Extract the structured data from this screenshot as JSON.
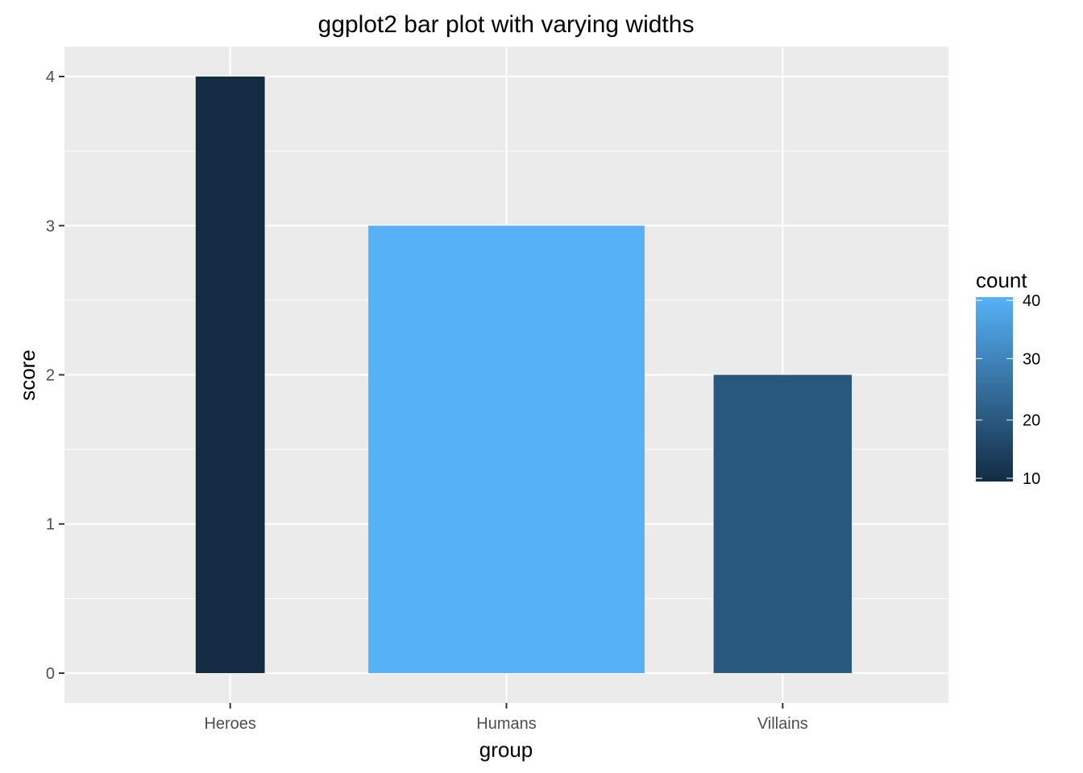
{
  "chart_data": {
    "type": "bar",
    "title": "ggplot2 bar plot with varying widths",
    "xlabel": "group",
    "ylabel": "score",
    "categories": [
      "Heroes",
      "Humans",
      "Villains"
    ],
    "values": [
      4,
      3,
      2
    ],
    "bar_widths": [
      0.25,
      1.0,
      0.5
    ],
    "ylim": [
      -0.2,
      4.2
    ],
    "yticks": [
      0,
      1,
      2,
      3,
      4
    ],
    "grid": true,
    "fill_scale": {
      "name": "count",
      "values": [
        10,
        40,
        20
      ],
      "limits": [
        10,
        40
      ],
      "breaks": [
        10,
        20,
        30,
        40
      ],
      "low_color": "#132B43",
      "high_color": "#56B1F7"
    },
    "legend_placement": "right",
    "colors": {
      "panel_background": "#EBEBEB",
      "gridline": "#FFFFFF",
      "tick_text": "#4D4D4D"
    }
  }
}
